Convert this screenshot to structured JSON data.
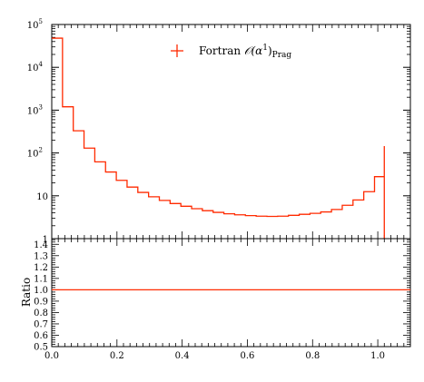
{
  "chart_data": [
    {
      "type": "line",
      "step": true,
      "xlim": [
        0.0,
        1.1
      ],
      "ylim": [
        1,
        100000
      ],
      "yscale": "log",
      "ytick_labels": [
        "1",
        "10",
        "10",
        "10",
        "10",
        "10"
      ],
      "ytick_exponents": [
        "",
        "",
        "2",
        "3",
        "4",
        "5"
      ],
      "legend": {
        "position": "top-center",
        "label_main": "Fortran ",
        "label_script": "𝒪(α",
        "label_sup": "1",
        "label_close": ")",
        "label_sub": "Prag"
      },
      "series": [
        {
          "name": "Fortran O(α^1)_Prag",
          "color": "#ff2a00",
          "bin_edges": [
            0.0,
            0.033,
            0.066,
            0.099,
            0.132,
            0.165,
            0.198,
            0.231,
            0.264,
            0.297,
            0.33,
            0.363,
            0.396,
            0.429,
            0.462,
            0.495,
            0.528,
            0.561,
            0.594,
            0.627,
            0.66,
            0.693,
            0.726,
            0.759,
            0.792,
            0.825,
            0.858,
            0.891,
            0.924,
            0.957,
            0.99,
            1.02
          ],
          "values": [
            48000,
            1200,
            330,
            130,
            62,
            36,
            23,
            16,
            12,
            9.5,
            7.8,
            6.6,
            5.7,
            5.0,
            4.5,
            4.1,
            3.8,
            3.6,
            3.45,
            3.35,
            3.3,
            3.35,
            3.5,
            3.7,
            3.9,
            4.2,
            4.8,
            6.0,
            8.0,
            12.5,
            28,
            145
          ],
          "drop_to_bottom_at": 1.02
        }
      ]
    },
    {
      "type": "line",
      "ylabel": "Ratio",
      "xlim": [
        0.0,
        1.1
      ],
      "ylim": [
        0.5,
        1.45
      ],
      "xtick_labels": [
        "0.0",
        "0.2",
        "0.4",
        "0.6",
        "0.8",
        "1.0"
      ],
      "xtick_values": [
        0.0,
        0.2,
        0.4,
        0.6,
        0.8,
        1.0
      ],
      "ytick_labels": [
        "0.5",
        "0.6",
        "0.7",
        "0.8",
        "0.9",
        "1.0",
        "1.1",
        "1.2",
        "1.3",
        "1.4"
      ],
      "ytick_values": [
        0.5,
        0.6,
        0.7,
        0.8,
        0.9,
        1.0,
        1.1,
        1.2,
        1.3,
        1.4
      ],
      "series": [
        {
          "name": "ratio",
          "color": "#ff2a00",
          "x": [
            0.0,
            1.1
          ],
          "y": [
            1.0,
            1.0
          ]
        }
      ]
    }
  ]
}
